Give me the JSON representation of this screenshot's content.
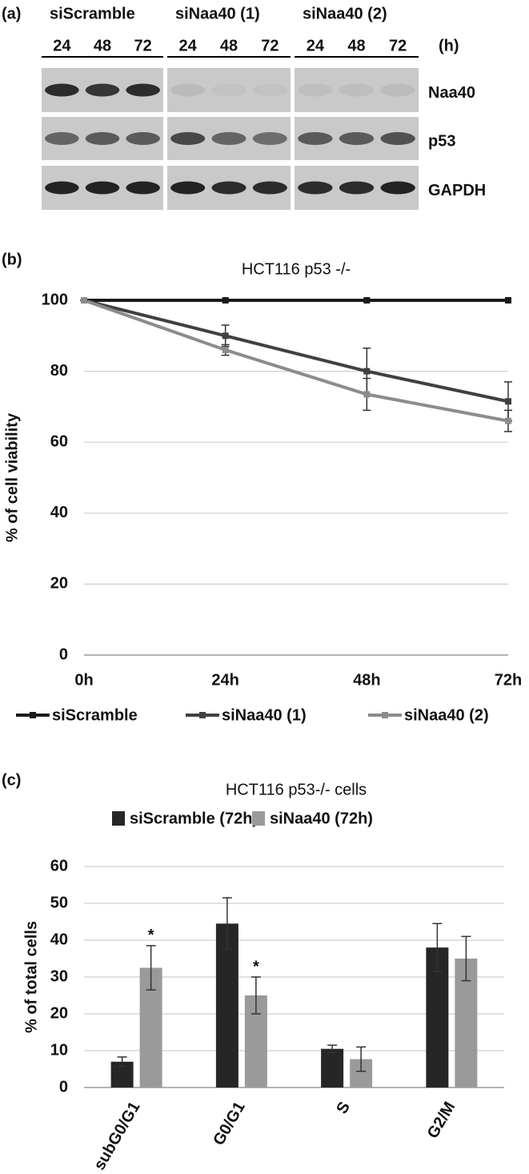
{
  "blot": {
    "panel_label": "(a)",
    "groups": [
      "siScramble",
      "siNaa40 (1)",
      "siNaa40 (2)"
    ],
    "times": [
      "24",
      "48",
      "72",
      "24",
      "48",
      "72",
      "24",
      "48",
      "72"
    ],
    "time_unit": "(h)",
    "rows": [
      "Naa40",
      "p53",
      "GAPDH"
    ]
  },
  "chart_data": [
    {
      "type": "line",
      "panel_label": "(b)",
      "title": "HCT116 p53 -/-",
      "y_label": "% of cell viability",
      "categories": [
        "0h",
        "24h",
        "48h",
        "72h"
      ],
      "series": [
        {
          "name": "siScramble",
          "color": "#1a1a1a",
          "values": [
            100,
            100,
            100,
            100
          ]
        },
        {
          "name": "siNaa40 (1)",
          "color": "#404040",
          "values": [
            100,
            90,
            80,
            71.5
          ],
          "errors": [
            0,
            3,
            6.5,
            5.5
          ]
        },
        {
          "name": "siNaa40 (2)",
          "color": "#8c8c8c",
          "values": [
            100,
            86,
            73.5,
            66
          ],
          "errors": [
            0,
            1.5,
            4.5,
            3
          ]
        }
      ],
      "ylim": [
        0,
        100
      ],
      "yticks": [
        0,
        20,
        40,
        60,
        80,
        100
      ],
      "grid": true
    },
    {
      "type": "bar",
      "panel_label": "(c)",
      "title": "HCT116 p53-/- cells",
      "y_label": "% of total cells",
      "categories": [
        "subG0/G1",
        "G0/G1",
        "S",
        "G2/M"
      ],
      "series": [
        {
          "name": "siScramble (72h)",
          "color": "#262626",
          "values": [
            7,
            44.5,
            10.5,
            38
          ],
          "errors": [
            1.3,
            7,
            1,
            6.5
          ]
        },
        {
          "name": "siNaa40 (72h)",
          "color": "#9a9a9a",
          "values": [
            32.5,
            25,
            7.7,
            35
          ],
          "errors": [
            6,
            5,
            3.3,
            6
          ],
          "significance": [
            "*",
            "*",
            null,
            null
          ]
        }
      ],
      "ylim": [
        0,
        60
      ],
      "yticks": [
        0,
        10,
        20,
        30,
        40,
        50,
        60
      ],
      "grid": true
    }
  ]
}
